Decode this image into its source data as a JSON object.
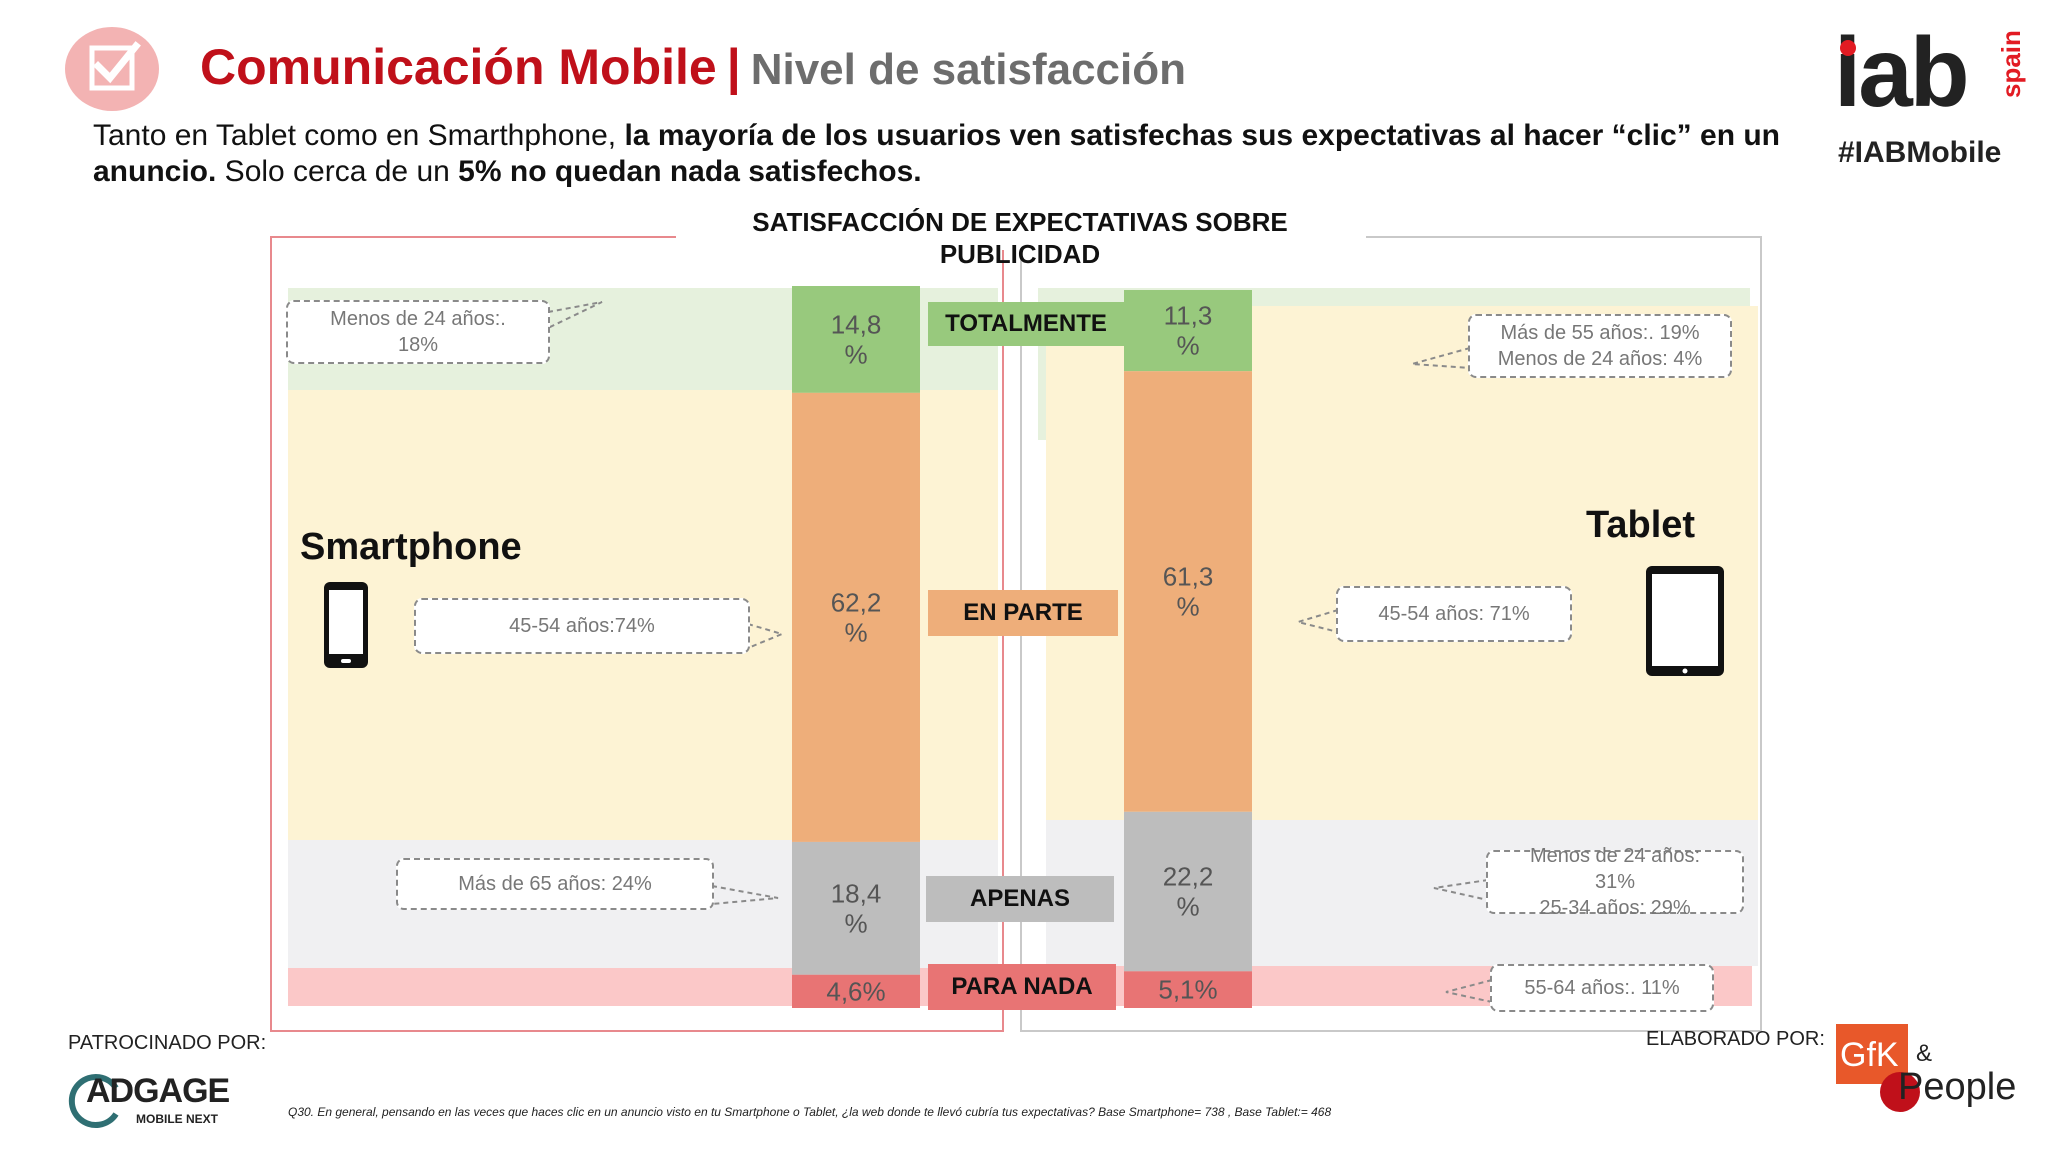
{
  "header": {
    "title_main": "Comunicación Mobile",
    "title_sep": "|",
    "title_sub": "Nivel de satisfacción",
    "subtitle_part1": "Tanto en Tablet como en Smarthphone, ",
    "subtitle_part2": "la mayoría de los usuarios ven satisfechas sus expectativas al hacer “clic” en un anuncio.",
    "subtitle_part3": " Solo cerca de un ",
    "subtitle_part4": "5%  no quedan nada satisfechos."
  },
  "brand": {
    "logo_text": "iab",
    "logo_suffix": "spain",
    "hashtag": "#IABMobile"
  },
  "colors": {
    "accent_red": "#c0101a",
    "green": "#98c97d",
    "orange": "#eeae7a",
    "gray": "#bdbdbd",
    "red": "#e87474"
  },
  "chart_data": {
    "type": "bar",
    "title": "SATISFACCIÓN DE EXPECTATIVAS SOBRE PUBLICIDAD",
    "categories": [
      "Smartphone",
      "Tablet"
    ],
    "series": [
      {
        "name": "TOTALMENTE",
        "values": [
          14.8,
          11.3
        ],
        "labels": [
          "14,8\n%",
          "11,3\n%"
        ]
      },
      {
        "name": "EN PARTE",
        "values": [
          62.2,
          61.3
        ],
        "labels": [
          "62,2\n%",
          "61,3\n%"
        ]
      },
      {
        "name": "APENAS",
        "values": [
          18.4,
          22.2
        ],
        "labels": [
          "18,4\n%",
          "22,2\n%"
        ]
      },
      {
        "name": "PARA NADA",
        "values": [
          4.6,
          5.1
        ],
        "labels": [
          "4,6%",
          "5,1%"
        ]
      }
    ]
  },
  "devices": {
    "smartphone": "Smartphone",
    "tablet": "Tablet"
  },
  "callouts": {
    "sp_total_1": "Menos de 24 años:.",
    "sp_total_2": "18%",
    "sp_parte": "45-54 años:74%",
    "sp_apenas": "Más de 65 años:  24%",
    "tab_total_1": "Más de 55 años:. 19%",
    "tab_total_2": "Menos de 24 años: 4%",
    "tab_parte": "45-54 años: 71%",
    "tab_apenas_1": "Menos de 24 años:",
    "tab_apenas_2": "31%",
    "tab_apenas_3": "25-34 años:  29%",
    "tab_nada": "55-64  años:. 11%"
  },
  "footer": {
    "sponsored": "PATROCINADO POR:",
    "sponsor_logo": "ADGAGE",
    "sponsor_logo_sub": "MOBILE NEXT",
    "elaborated": "ELABORADO POR:",
    "gfk": "GfK",
    "amp": "&",
    "people": "People",
    "note": "Q30. En general, pensando en las veces que haces clic en un anuncio visto en tu Smartphone o Tablet, ¿la web donde te llevó cubría tus expectativas? Base Smartphone= 738 , Base Tablet:= 468"
  }
}
